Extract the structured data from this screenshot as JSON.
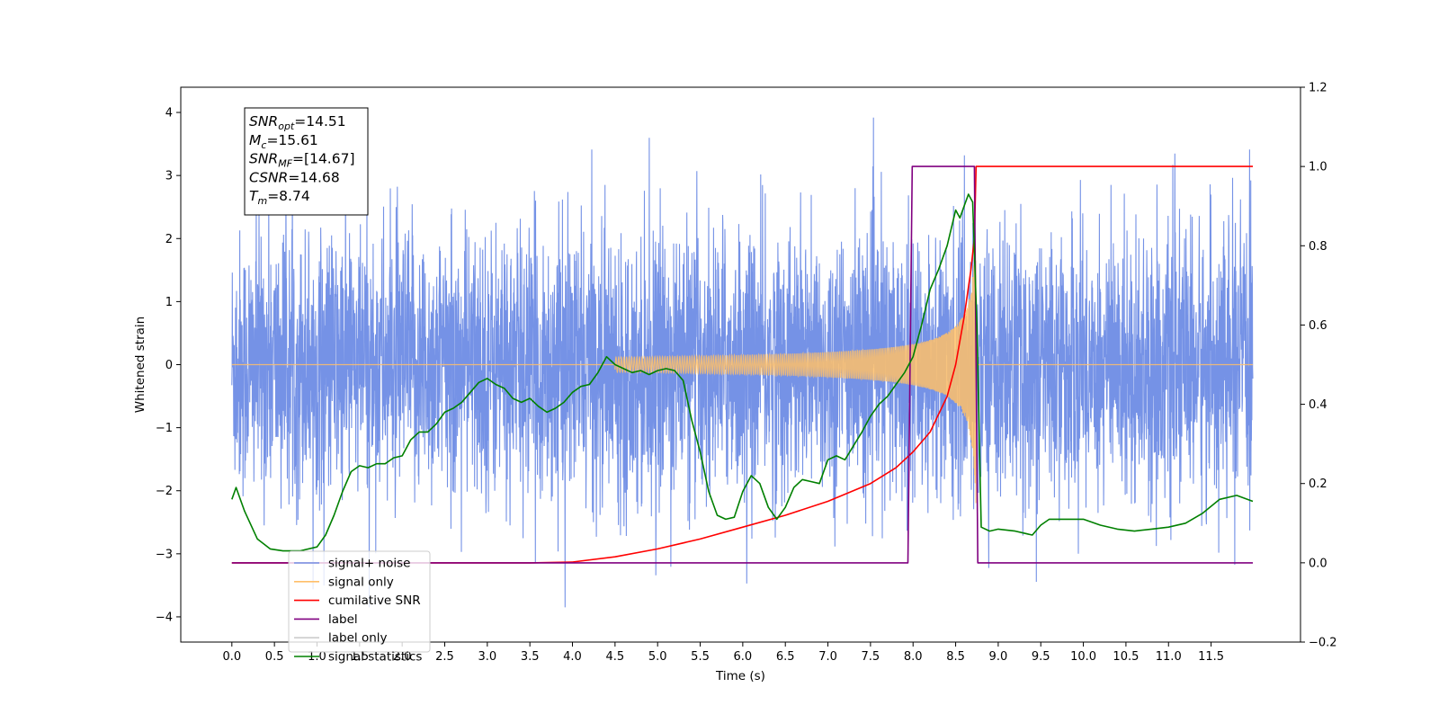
{
  "chart_data": {
    "type": "line",
    "xlabel": "Time (s)",
    "ylabel_left": "Whitened strain",
    "xlim": [
      -0.6,
      12.55
    ],
    "ylim_left": [
      -4.4,
      4.4
    ],
    "ylim_right": [
      -0.2,
      1.2
    ],
    "x_ticks": [
      "0.0",
      "0.5",
      "1.0",
      "1.5",
      "2.0",
      "2.5",
      "3.0",
      "3.5",
      "4.0",
      "4.5",
      "5.0",
      "5.5",
      "6.0",
      "6.5",
      "7.0",
      "7.5",
      "8.0",
      "8.5",
      "9.0",
      "9.5",
      "10.0",
      "10.5",
      "11.0",
      "11.5"
    ],
    "y_ticks_left": [
      "−4",
      "−3",
      "−2",
      "−1",
      "0",
      "1",
      "2",
      "3",
      "4"
    ],
    "y_ticks_right": [
      "−0.2",
      "0.0",
      "0.2",
      "0.4",
      "0.6",
      "0.8",
      "1.0",
      "1.2"
    ],
    "annotation": {
      "lines": [
        {
          "var": "SNR",
          "sub": "opt",
          "value": "=14.51"
        },
        {
          "var": "M",
          "sub": "c",
          "value": "=15.61"
        },
        {
          "var": "SNR",
          "sub": "MF",
          "value": "=[14.67]"
        },
        {
          "var": "CSNR",
          "sub": "",
          "value": "=14.68"
        },
        {
          "var": "T",
          "sub": "m",
          "value": "=8.74"
        }
      ]
    },
    "legend": {
      "placement": "lower-left",
      "entries": [
        {
          "label": "signal+ noise",
          "color": "#7592e6"
        },
        {
          "label": "signal only",
          "color": "#ffbf69"
        },
        {
          "label": "cumilative SNR",
          "color": "#ff0000"
        },
        {
          "label": "label",
          "color": "#800080"
        },
        {
          "label": "label only",
          "color": "#cccccc"
        },
        {
          "label": "signal statistics",
          "color": "#008000"
        }
      ]
    },
    "series": [
      {
        "name": "signal+ noise",
        "axis": "left",
        "color": "#7592e6",
        "description_points": {
          "t_start": 0.0,
          "t_end": 11.99,
          "typical_envelope": [
            -2.6,
            2.6
          ],
          "max": 4.1,
          "min": -3.85
        }
      },
      {
        "name": "signal only",
        "axis": "left",
        "color": "#ffbf69",
        "chirp": {
          "t_start": 4.5,
          "t_merge": 8.74,
          "peak_amplitude": 2.3
        }
      },
      {
        "name": "cumilative SNR",
        "axis": "right",
        "color": "#ff0000",
        "x": [
          0.0,
          3.5,
          4.0,
          4.5,
          5.0,
          5.5,
          6.0,
          6.5,
          7.0,
          7.5,
          7.8,
          8.0,
          8.2,
          8.4,
          8.5,
          8.6,
          8.68,
          8.72,
          8.74,
          11.99
        ],
        "y": [
          0.0,
          0.0,
          0.002,
          0.015,
          0.035,
          0.06,
          0.09,
          0.12,
          0.155,
          0.2,
          0.24,
          0.28,
          0.33,
          0.42,
          0.5,
          0.62,
          0.74,
          0.82,
          1.0,
          1.0
        ]
      },
      {
        "name": "label",
        "axis": "right",
        "color": "#800080",
        "x": [
          0.0,
          7.94,
          7.99,
          8.72,
          8.76,
          11.99
        ],
        "y": [
          0.0,
          0.0,
          1.0,
          1.0,
          0.0,
          0.0
        ]
      },
      {
        "name": "signal statistics",
        "axis": "right",
        "color": "#008000",
        "x": [
          0.0,
          0.05,
          0.15,
          0.3,
          0.45,
          0.6,
          0.8,
          1.0,
          1.1,
          1.2,
          1.3,
          1.4,
          1.5,
          1.6,
          1.7,
          1.8,
          1.9,
          2.0,
          2.1,
          2.2,
          2.3,
          2.4,
          2.5,
          2.6,
          2.7,
          2.8,
          2.9,
          3.0,
          3.1,
          3.2,
          3.3,
          3.4,
          3.5,
          3.6,
          3.7,
          3.8,
          3.9,
          4.0,
          4.1,
          4.2,
          4.3,
          4.4,
          4.5,
          4.6,
          4.7,
          4.8,
          4.9,
          5.0,
          5.1,
          5.2,
          5.3,
          5.4,
          5.5,
          5.6,
          5.7,
          5.8,
          5.9,
          6.0,
          6.1,
          6.2,
          6.3,
          6.4,
          6.5,
          6.6,
          6.7,
          6.8,
          6.9,
          7.0,
          7.1,
          7.2,
          7.3,
          7.4,
          7.5,
          7.6,
          7.7,
          7.8,
          7.9,
          8.0,
          8.1,
          8.2,
          8.3,
          8.4,
          8.5,
          8.55,
          8.6,
          8.65,
          8.7,
          8.75,
          8.8,
          8.9,
          9.0,
          9.2,
          9.4,
          9.5,
          9.6,
          9.8,
          10.0,
          10.2,
          10.4,
          10.6,
          10.8,
          11.0,
          11.2,
          11.4,
          11.6,
          11.8,
          11.99
        ],
        "y": [
          0.16,
          0.19,
          0.13,
          0.06,
          0.035,
          0.03,
          0.03,
          0.04,
          0.07,
          0.12,
          0.18,
          0.23,
          0.245,
          0.24,
          0.25,
          0.25,
          0.265,
          0.27,
          0.31,
          0.33,
          0.33,
          0.35,
          0.38,
          0.39,
          0.405,
          0.43,
          0.455,
          0.465,
          0.45,
          0.44,
          0.415,
          0.405,
          0.415,
          0.395,
          0.38,
          0.39,
          0.405,
          0.43,
          0.445,
          0.45,
          0.48,
          0.52,
          0.5,
          0.49,
          0.48,
          0.485,
          0.475,
          0.485,
          0.49,
          0.485,
          0.46,
          0.36,
          0.28,
          0.18,
          0.12,
          0.11,
          0.115,
          0.18,
          0.22,
          0.2,
          0.14,
          0.11,
          0.14,
          0.19,
          0.21,
          0.205,
          0.2,
          0.26,
          0.27,
          0.26,
          0.295,
          0.33,
          0.37,
          0.4,
          0.42,
          0.45,
          0.48,
          0.52,
          0.6,
          0.69,
          0.74,
          0.8,
          0.89,
          0.87,
          0.9,
          0.93,
          0.91,
          0.6,
          0.09,
          0.08,
          0.085,
          0.08,
          0.07,
          0.095,
          0.11,
          0.11,
          0.11,
          0.095,
          0.085,
          0.08,
          0.085,
          0.09,
          0.1,
          0.125,
          0.16,
          0.17,
          0.155
        ]
      }
    ]
  }
}
